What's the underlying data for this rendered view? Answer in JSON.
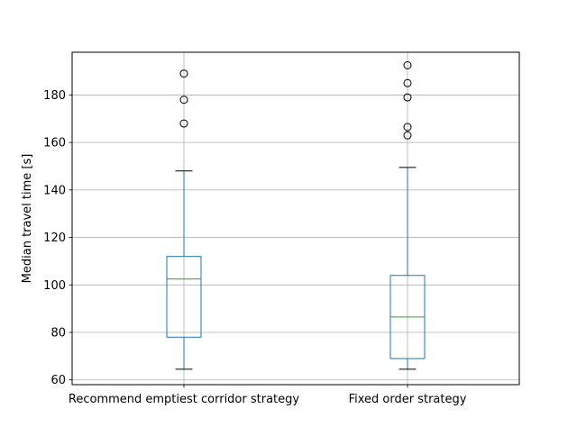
{
  "chart_data": {
    "type": "box",
    "title": "",
    "xlabel": "",
    "ylabel": "Median travel time [s]",
    "ylim": [
      58,
      198
    ],
    "yticks": [
      60,
      80,
      100,
      120,
      140,
      160,
      180
    ],
    "grid": true,
    "categories": [
      "Recommend emptiest corridor strategy",
      "Fixed order strategy"
    ],
    "boxes": [
      {
        "whisker_low": 64.5,
        "q1": 78,
        "median": 102.5,
        "q3": 112,
        "whisker_high": 148,
        "outliers": [
          168,
          178,
          189
        ]
      },
      {
        "whisker_low": 64.5,
        "q1": 69,
        "median": 86.5,
        "q3": 104,
        "whisker_high": 149.5,
        "outliers": [
          163,
          166.5,
          179,
          185,
          192.5
        ]
      }
    ],
    "colors": {
      "box": "#1f77b4",
      "median": "#2ca02c",
      "grid": "#b0b0b0",
      "outlier": "#000000",
      "whisker_cap": "#000000"
    }
  }
}
